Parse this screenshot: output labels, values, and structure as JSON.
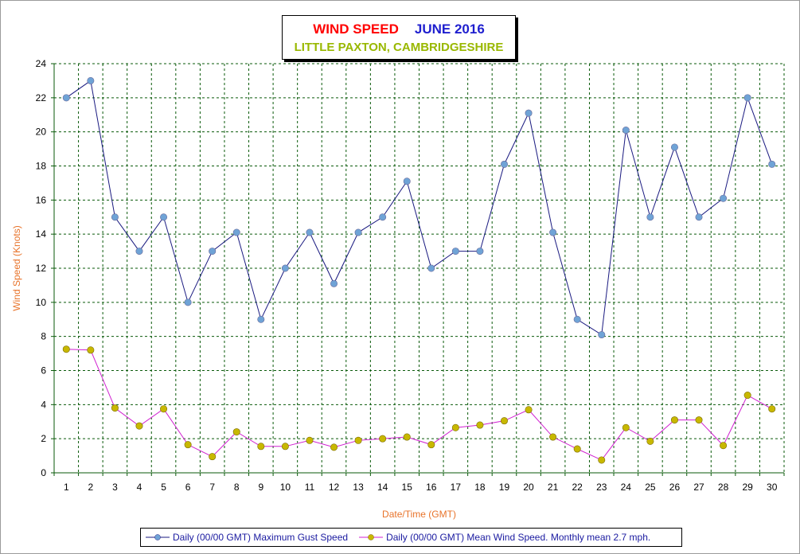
{
  "chart_data": {
    "type": "line",
    "title": "WIND SPEED",
    "title_date": "JUNE 2016",
    "subtitle": "LITTLE PAXTON, CAMBRIDGESHIRE",
    "xlabel": "Date/Time (GMT)",
    "ylabel": "Wind Speed (Knots)",
    "categories": [
      "1",
      "2",
      "3",
      "4",
      "5",
      "6",
      "7",
      "8",
      "9",
      "10",
      "11",
      "12",
      "13",
      "14",
      "15",
      "16",
      "17",
      "18",
      "19",
      "20",
      "21",
      "22",
      "23",
      "24",
      "25",
      "26",
      "27",
      "28",
      "29",
      "30"
    ],
    "ylim": [
      0,
      24
    ],
    "yticks": [
      "0",
      "2",
      "4",
      "6",
      "8",
      "10",
      "12",
      "14",
      "16",
      "18",
      "20",
      "22",
      "24"
    ],
    "grid": true,
    "legend_position": "bottom",
    "series": [
      {
        "name": "Daily (00/00 GMT) Maximum Gust Speed",
        "line_color": "#1a1a80",
        "marker_color": "#6fa3d6",
        "values": [
          22,
          23,
          15,
          13,
          15,
          10,
          13,
          14.1,
          9,
          12,
          14.1,
          11.1,
          14.1,
          15,
          17.1,
          12,
          13,
          13,
          18.1,
          21.1,
          14.1,
          9,
          8.1,
          20.1,
          15,
          19.1,
          15,
          16.1,
          22,
          18.1
        ]
      },
      {
        "name": "Daily (00/00 GMT) Mean Wind Speed. Monthly mean 2.7 mph.",
        "line_color": "#d020d0",
        "marker_color": "#c8b800",
        "values": [
          7.25,
          7.2,
          3.8,
          2.75,
          3.75,
          1.65,
          0.95,
          2.4,
          1.55,
          1.55,
          1.9,
          1.5,
          1.9,
          2.0,
          2.1,
          1.65,
          2.65,
          2.8,
          3.05,
          3.7,
          2.1,
          1.4,
          0.75,
          2.65,
          1.85,
          3.1,
          3.1,
          1.6,
          4.55,
          3.75
        ]
      }
    ]
  },
  "colors": {
    "grid": "#0a5a0a",
    "axis_tick_text": "#000000",
    "axis_label": "#e8732a",
    "title_red": "#ff0000",
    "title_blue": "#1f1fcf",
    "subtitle_green": "#99b800"
  }
}
